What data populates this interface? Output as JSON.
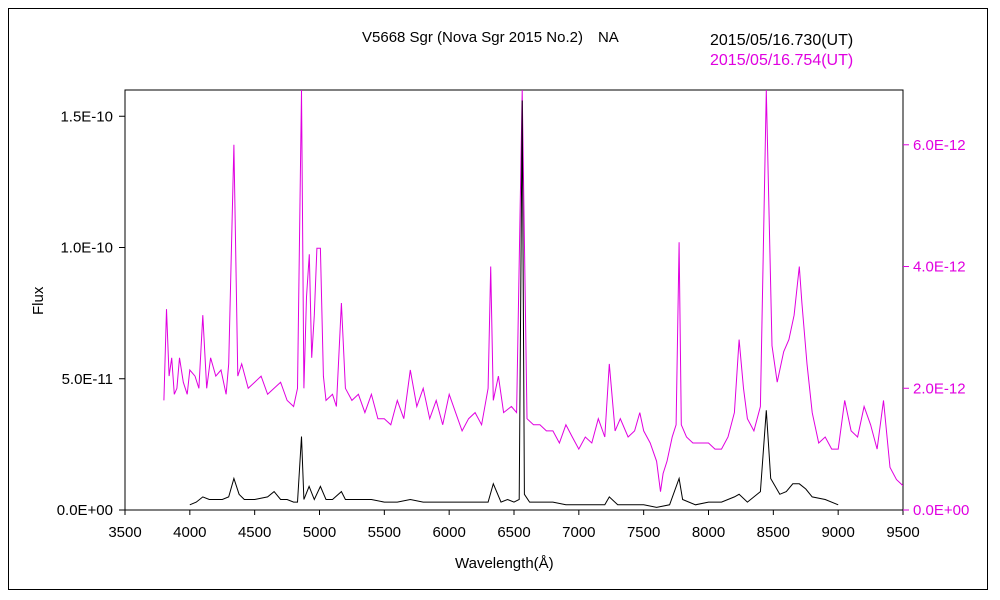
{
  "chart_data": {
    "type": "line",
    "title": "V5668 Sgr (Nova Sgr 2015 No.2)　NA",
    "xlabel": "Wavelength(Å)",
    "ylabel": "Flux",
    "xlim": [
      3500,
      9500
    ],
    "ylim_left": [
      0,
      1.6e-10
    ],
    "ylim_right": [
      0,
      6.9e-12
    ],
    "x_ticks": [
      "3500",
      "4000",
      "4500",
      "5000",
      "5500",
      "6000",
      "6500",
      "7000",
      "7500",
      "8000",
      "8500",
      "9000",
      "9500"
    ],
    "x_tick_values": [
      3500,
      4000,
      4500,
      5000,
      5500,
      6000,
      6500,
      7000,
      7500,
      8000,
      8500,
      9000,
      9500
    ],
    "y_left_ticks": [
      "0.0E+00",
      "5.0E-11",
      "1.0E-10",
      "1.5E-10"
    ],
    "y_left_tick_values": [
      0,
      5e-11,
      1e-10,
      1.5e-10
    ],
    "y_right_ticks": [
      "0.0E+00",
      "2.0E-12",
      "4.0E-12",
      "6.0E-12"
    ],
    "y_right_tick_values": [
      0,
      2e-12,
      4e-12,
      6e-12
    ],
    "colors": {
      "series1": "#000000",
      "series2": "#e000e0"
    },
    "series": [
      {
        "name": "2015/05/16.730(UT)",
        "axis": "left",
        "x": [
          4000,
          4050,
          4100,
          4150,
          4200,
          4250,
          4300,
          4340,
          4380,
          4420,
          4500,
          4600,
          4650,
          4700,
          4750,
          4800,
          4830,
          4861,
          4880,
          4920,
          4960,
          5007,
          5050,
          5100,
          5169,
          5200,
          5300,
          5400,
          5500,
          5600,
          5700,
          5800,
          5900,
          6000,
          6100,
          6200,
          6300,
          6340,
          6400,
          6450,
          6500,
          6540,
          6563,
          6580,
          6620,
          6700,
          6800,
          6900,
          7000,
          7100,
          7200,
          7235,
          7300,
          7400,
          7500,
          7600,
          7700,
          7773,
          7800,
          7900,
          8000,
          8100,
          8200,
          8236,
          8300,
          8400,
          8446,
          8480,
          8550,
          8600,
          8650,
          8700,
          8750,
          8800,
          8900,
          9000
        ],
        "values": [
          2e-12,
          3e-12,
          5e-12,
          4e-12,
          4e-12,
          4e-12,
          5e-12,
          1.2e-11,
          6e-12,
          4e-12,
          4e-12,
          5e-12,
          7e-12,
          4e-12,
          4e-12,
          3e-12,
          3e-12,
          2.8e-11,
          4e-12,
          9e-12,
          4e-12,
          9e-12,
          4e-12,
          4e-12,
          7e-12,
          4e-12,
          4e-12,
          4e-12,
          3e-12,
          3e-12,
          4e-12,
          3e-12,
          3e-12,
          3e-12,
          3e-12,
          3e-12,
          3e-12,
          1e-11,
          3e-12,
          4e-12,
          3e-12,
          4e-12,
          1.56e-10,
          6e-12,
          3e-12,
          3e-12,
          3e-12,
          2e-12,
          2e-12,
          2e-12,
          2e-12,
          5e-12,
          2e-12,
          2e-12,
          2e-12,
          1e-12,
          2e-12,
          1.2e-11,
          4e-12,
          2e-12,
          3e-12,
          3e-12,
          5e-12,
          6e-12,
          3e-12,
          7e-12,
          3.8e-11,
          1.2e-11,
          6e-12,
          7e-12,
          1e-11,
          1e-11,
          8e-12,
          5e-12,
          4e-12,
          2e-12
        ]
      },
      {
        "name": "2015/05/16.754(UT)",
        "axis": "right",
        "x": [
          3800,
          3820,
          3840,
          3860,
          3880,
          3900,
          3920,
          3950,
          3980,
          4000,
          4040,
          4070,
          4100,
          4130,
          4160,
          4200,
          4240,
          4280,
          4300,
          4340,
          4370,
          4400,
          4450,
          4500,
          4550,
          4600,
          4650,
          4700,
          4750,
          4800,
          4830,
          4861,
          4880,
          4900,
          4921,
          4940,
          4960,
          4980,
          5007,
          5030,
          5050,
          5100,
          5130,
          5169,
          5200,
          5250,
          5300,
          5350,
          5400,
          5450,
          5500,
          5550,
          5600,
          5650,
          5700,
          5750,
          5800,
          5850,
          5900,
          5950,
          6000,
          6050,
          6100,
          6150,
          6200,
          6250,
          6300,
          6320,
          6340,
          6380,
          6420,
          6480,
          6520,
          6563,
          6600,
          6650,
          6700,
          6750,
          6800,
          6850,
          6900,
          6950,
          7000,
          7050,
          7100,
          7150,
          7200,
          7235,
          7280,
          7320,
          7380,
          7430,
          7470,
          7500,
          7550,
          7600,
          7630,
          7650,
          7680,
          7720,
          7750,
          7773,
          7790,
          7830,
          7880,
          7950,
          8000,
          8050,
          8100,
          8150,
          8200,
          8236,
          8270,
          8300,
          8350,
          8400,
          8446,
          8490,
          8530,
          8580,
          8620,
          8660,
          8700,
          8720,
          8760,
          8800,
          8850,
          8900,
          8950,
          9000,
          9050,
          9100,
          9150,
          9200,
          9250,
          9300,
          9350,
          9400,
          9450,
          9500
        ],
        "values": [
          1.8e-12,
          3.3e-12,
          2.2e-12,
          2.5e-12,
          1.9e-12,
          2e-12,
          2.5e-12,
          2.1e-12,
          1.9e-12,
          2.3e-12,
          2.2e-12,
          2e-12,
          3.2e-12,
          2e-12,
          2.5e-12,
          2.2e-12,
          2.3e-12,
          1.9e-12,
          2.4e-12,
          6e-12,
          2.2e-12,
          2.4e-12,
          2e-12,
          2.1e-12,
          2.2e-12,
          1.9e-12,
          2e-12,
          2.1e-12,
          1.8e-12,
          1.7e-12,
          2e-12,
          6.9e-12,
          2e-12,
          3.5e-12,
          4.2e-12,
          2.5e-12,
          3.2e-12,
          4.3e-12,
          4.3e-12,
          2.2e-12,
          1.8e-12,
          1.9e-12,
          1.7e-12,
          3.4e-12,
          2e-12,
          1.8e-12,
          1.9e-12,
          1.6e-12,
          1.9e-12,
          1.5e-12,
          1.5e-12,
          1.4e-12,
          1.8e-12,
          1.5e-12,
          2.3e-12,
          1.7e-12,
          2e-12,
          1.5e-12,
          1.8e-12,
          1.4e-12,
          1.9e-12,
          1.6e-12,
          1.3e-12,
          1.5e-12,
          1.6e-12,
          1.4e-12,
          2e-12,
          4e-12,
          1.8e-12,
          2.2e-12,
          1.6e-12,
          1.7e-12,
          1.6e-12,
          6.9e-12,
          1.5e-12,
          1.4e-12,
          1.4e-12,
          1.3e-12,
          1.3e-12,
          1.1e-12,
          1.4e-12,
          1.2e-12,
          1e-12,
          1.2e-12,
          1.1e-12,
          1.5e-12,
          1.2e-12,
          2.4e-12,
          1.3e-12,
          1.5e-12,
          1.2e-12,
          1.3e-12,
          1.6e-12,
          1.3e-12,
          1.1e-12,
          8e-13,
          3e-13,
          6e-13,
          8e-13,
          1.2e-12,
          1.4e-12,
          4.4e-12,
          1.4e-12,
          1.2e-12,
          1.1e-12,
          1.1e-12,
          1.1e-12,
          1e-12,
          1e-12,
          1.2e-12,
          1.6e-12,
          2.8e-12,
          2e-12,
          1.5e-12,
          1.3e-12,
          1.7e-12,
          6.9e-12,
          2.7e-12,
          2.1e-12,
          2.6e-12,
          2.8e-12,
          3.2e-12,
          4e-12,
          3.4e-12,
          2.4e-12,
          1.6e-12,
          1.1e-12,
          1.2e-12,
          1e-12,
          1e-12,
          1.8e-12,
          1.3e-12,
          1.2e-12,
          1.7e-12,
          1.4e-12,
          1e-12,
          1.8e-12,
          7e-13,
          5e-13,
          4e-13
        ]
      }
    ]
  }
}
